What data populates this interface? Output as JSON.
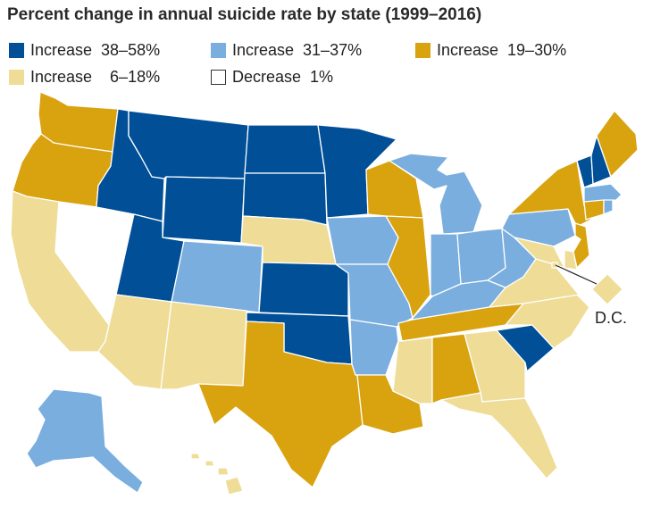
{
  "title": "Percent change in annual suicide rate by state (1999–2016)",
  "legend": [
    {
      "id": "inc_38_58",
      "label": "Increase  38–58%",
      "color": "#004f97"
    },
    {
      "id": "inc_31_37",
      "label": "Increase  31–37%",
      "color": "#7aaede"
    },
    {
      "id": "inc_19_30",
      "label": "Increase  19–30%",
      "color": "#d9a20f"
    },
    {
      "id": "inc_6_18",
      "label": "Increase    6–18%",
      "color": "#efdc96"
    },
    {
      "id": "dec_1",
      "label": "Decrease  1%",
      "color": "#ffffff"
    }
  ],
  "dc_label": "D.C.",
  "state_categories": {
    "WA": "inc_19_30",
    "OR": "inc_19_30",
    "CA": "inc_6_18",
    "NV": "dec_1",
    "ID": "inc_38_58",
    "MT": "inc_38_58",
    "WY": "inc_38_58",
    "UT": "inc_38_58",
    "AZ": "inc_6_18",
    "CO": "inc_31_37",
    "NM": "inc_6_18",
    "ND": "inc_38_58",
    "SD": "inc_38_58",
    "NE": "inc_6_18",
    "KS": "inc_38_58",
    "OK": "inc_38_58",
    "TX": "inc_19_30",
    "MN": "inc_38_58",
    "IA": "inc_31_37",
    "MO": "inc_31_37",
    "AR": "inc_31_37",
    "LA": "inc_19_30",
    "WI": "inc_19_30",
    "IL": "inc_19_30",
    "MI": "inc_31_37",
    "IN": "inc_31_37",
    "OH": "inc_31_37",
    "KY": "inc_31_37",
    "TN": "inc_19_30",
    "MS": "inc_6_18",
    "AL": "inc_19_30",
    "GA": "inc_6_18",
    "FL": "inc_6_18",
    "SC": "inc_38_58",
    "NC": "inc_6_18",
    "VA": "inc_6_18",
    "WV": "inc_31_37",
    "PA": "inc_31_37",
    "NY": "inc_19_30",
    "VT": "inc_38_58",
    "NH": "inc_38_58",
    "ME": "inc_19_30",
    "MA": "inc_31_37",
    "CT": "inc_19_30",
    "RI": "inc_31_37",
    "NJ": "inc_19_30",
    "DE": "inc_6_18",
    "MD": "inc_6_18",
    "DC": "inc_6_18",
    "AK": "inc_31_37",
    "HI": "inc_6_18"
  }
}
